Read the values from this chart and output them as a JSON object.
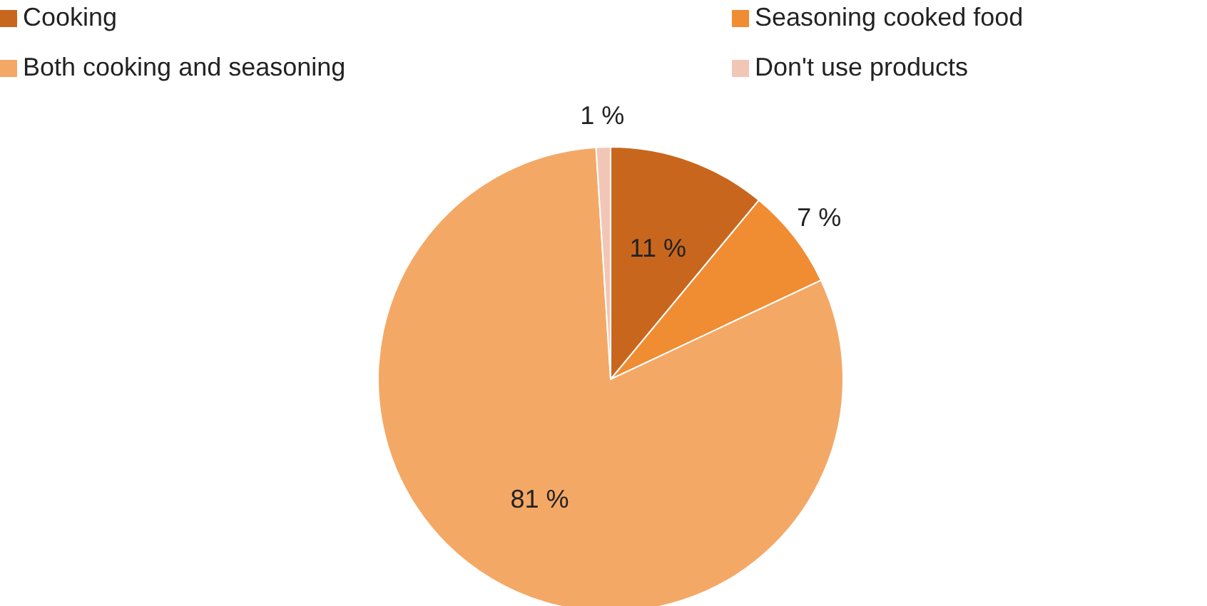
{
  "chart_data": {
    "type": "pie",
    "categories": [
      "Cooking",
      "Seasoning cooked food",
      "Both cooking and seasoning",
      "Don't use products"
    ],
    "values": [
      11,
      7,
      81,
      1
    ],
    "colors": [
      "#c8661e",
      "#f08c32",
      "#f4a866",
      "#f2c6b6"
    ],
    "value_labels": [
      "11 %",
      "7 %",
      "81 %",
      "1 %"
    ],
    "legend": "top"
  }
}
